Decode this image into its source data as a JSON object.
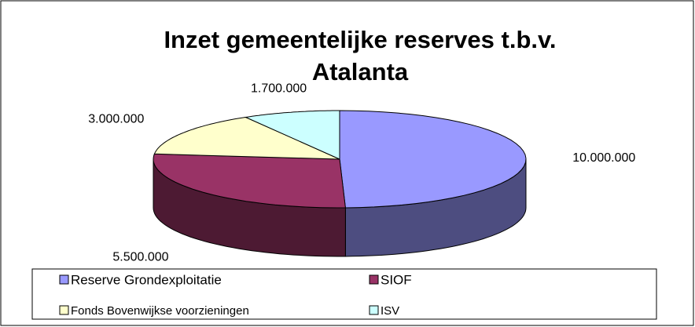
{
  "chart_data": {
    "type": "pie",
    "title": "Inzet gemeentelijke reserves t.b.v. Atalanta",
    "categories": [
      "Reserve Grondexploitatie",
      "SIOF",
      "Fonds Bovenwijkse voorzieningen",
      "ISV"
    ],
    "values": [
      10000000,
      5500000,
      3000000,
      1700000
    ],
    "value_labels": [
      "10.000.000",
      "5.500.000",
      "3.000.000",
      "1.700.000"
    ],
    "colors": [
      "#9999ff",
      "#993366",
      "#ffffcc",
      "#ccffff"
    ],
    "legend": "bottom"
  }
}
